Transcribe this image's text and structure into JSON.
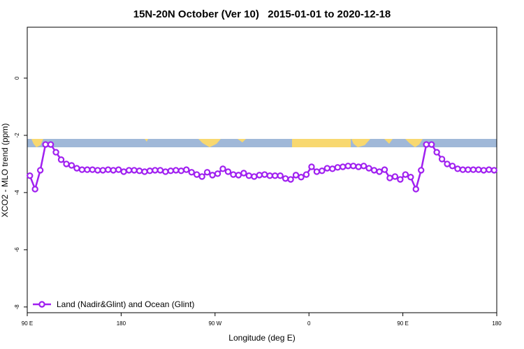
{
  "chart_data": {
    "type": "line",
    "title": "15N-20N October (Ver 10)   2015-01-01 to 2020-12-18",
    "x_label": "Longitude (deg E)",
    "y_label": "XCO2 - MLO trend (ppm)",
    "x": [
      92.5,
      97.5,
      102.5,
      107.5,
      112.5,
      117.5,
      122.5,
      127.5,
      132.5,
      137.5,
      142.5,
      147.5,
      152.5,
      157.5,
      162.5,
      167.5,
      172.5,
      177.5,
      182.5,
      187.5,
      192.5,
      197.5,
      202.5,
      207.5,
      212.5,
      217.5,
      222.5,
      227.5,
      232.5,
      237.5,
      242.5,
      247.5,
      252.5,
      257.5,
      262.5,
      267.5,
      272.5,
      277.5,
      282.5,
      287.5,
      292.5,
      297.5,
      302.5,
      307.5,
      312.5,
      317.5,
      322.5,
      327.5,
      332.5,
      337.5,
      342.5,
      347.5,
      352.5,
      357.5,
      362.5,
      367.5,
      372.5,
      377.5,
      382.5,
      387.5,
      392.5,
      397.5,
      402.5,
      407.5,
      412.5,
      417.5,
      422.5,
      427.5,
      432.5,
      437.5,
      442.5,
      447.5,
      452.5,
      457.5,
      462.5,
      467.5,
      472.5,
      477.5,
      482.5,
      487.5,
      492.5,
      497.5,
      502.5,
      507.5,
      512.5,
      517.5,
      522.5,
      527.5,
      532.5,
      537.5
    ],
    "series": [
      {
        "name": "Land (Nadir&Glint) and Ocean (Glint)",
        "color": "#a020f0",
        "values": [
          -3.41,
          -3.88,
          -3.22,
          -2.32,
          -2.32,
          -2.59,
          -2.85,
          -3.0,
          -3.05,
          -3.15,
          -3.2,
          -3.2,
          -3.2,
          -3.22,
          -3.22,
          -3.2,
          -3.22,
          -3.2,
          -3.27,
          -3.22,
          -3.22,
          -3.24,
          -3.27,
          -3.24,
          -3.22,
          -3.22,
          -3.27,
          -3.24,
          -3.22,
          -3.24,
          -3.2,
          -3.29,
          -3.37,
          -3.44,
          -3.29,
          -3.39,
          -3.34,
          -3.17,
          -3.27,
          -3.37,
          -3.39,
          -3.32,
          -3.41,
          -3.44,
          -3.39,
          -3.37,
          -3.41,
          -3.41,
          -3.41,
          -3.51,
          -3.54,
          -3.39,
          -3.46,
          -3.37,
          -3.1,
          -3.27,
          -3.24,
          -3.15,
          -3.17,
          -3.12,
          -3.1,
          -3.07,
          -3.07,
          -3.1,
          -3.07,
          -3.15,
          -3.22,
          -3.27,
          -3.2,
          -3.49,
          -3.44,
          -3.54,
          -3.37,
          -3.46,
          -3.88,
          -3.22,
          -2.32,
          -2.32,
          -2.59,
          -2.83,
          -3.0,
          -3.07,
          -3.17,
          -3.2,
          -3.2,
          -3.2,
          -3.2,
          -3.22,
          -3.2,
          -3.22
        ]
      }
    ],
    "xlim": [
      90,
      540
    ],
    "xticks": [
      {
        "value": 90,
        "label": "90 E"
      },
      {
        "value": 180,
        "label": "180"
      },
      {
        "value": 270,
        "label": "90 W"
      },
      {
        "value": 360,
        "label": "0"
      },
      {
        "value": 450,
        "label": "90 E"
      },
      {
        "value": 540,
        "label": "180"
      }
    ],
    "ylim": [
      -8.2,
      1.78
    ],
    "yticks": [
      -8,
      -6,
      -4,
      -2,
      0
    ],
    "legend": "bottom-left"
  }
}
